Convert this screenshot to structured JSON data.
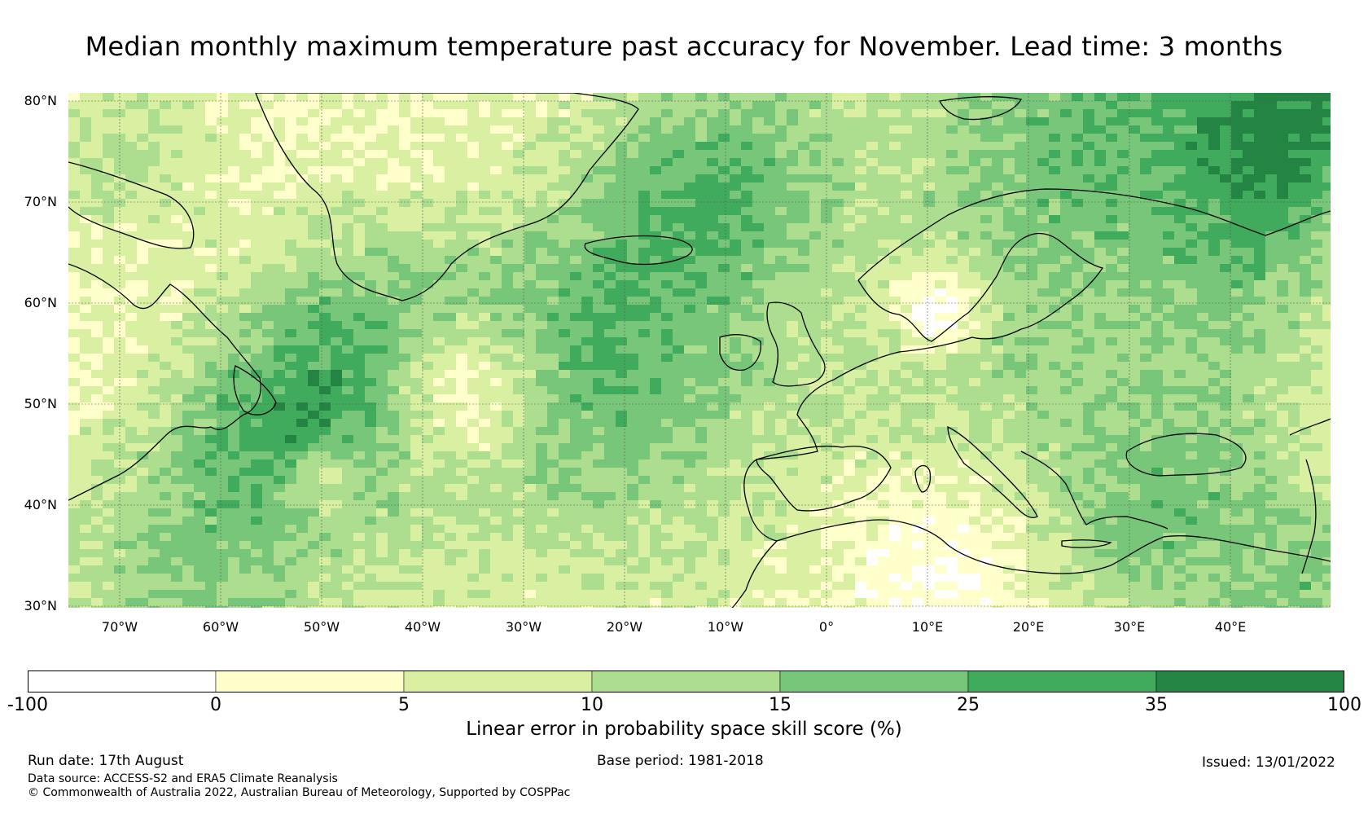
{
  "title": "Median monthly maximum temperature past accuracy for November. Lead time: 3 months",
  "map": {
    "lat_labels": [
      "80°N",
      "70°N",
      "60°N",
      "50°N",
      "40°N",
      "30°N"
    ],
    "lon_labels": [
      "70°W",
      "60°W",
      "50°W",
      "40°W",
      "30°W",
      "20°W",
      "10°W",
      "0°",
      "10°E",
      "20°E",
      "30°E",
      "40°E"
    ]
  },
  "legend": {
    "ticks": [
      "-100",
      "0",
      "5",
      "10",
      "15",
      "25",
      "35",
      "100"
    ],
    "colors": [
      "#ffffff",
      "#ffffcc",
      "#d9f0a3",
      "#addd8e",
      "#78c679",
      "#41ab5d",
      "#238443"
    ],
    "label": "Linear error in probability space skill score (%)"
  },
  "footer": {
    "run_date": "Run date: 17th August",
    "base_period": "Base period: 1981-2018",
    "issued": "Issued: 13/01/2022",
    "data_source": "Data source: ACCESS-S2 and ERA5 Climate Reanalysis",
    "copyright": "© Commonwealth of Australia 2022, Australian Bureau of Meteorology, Supported by COSPPac"
  }
}
